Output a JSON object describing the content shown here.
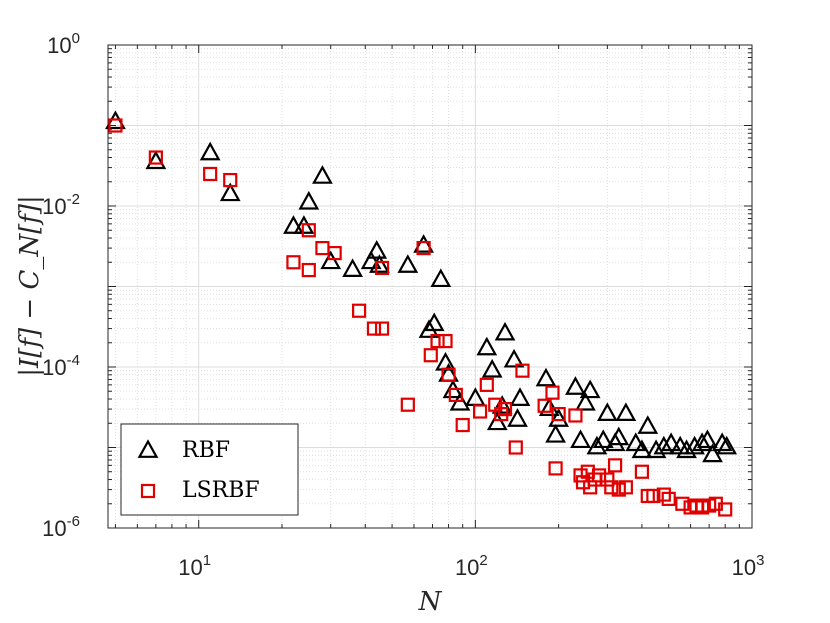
{
  "chart_data": {
    "type": "scatter",
    "xscale": "log",
    "yscale": "log",
    "xlim": [
      4.7,
      1000
    ],
    "ylim": [
      1e-06,
      1
    ],
    "x_ticks": [
      {
        "base": "10",
        "exp": "1"
      },
      {
        "base": "10",
        "exp": "2"
      },
      {
        "base": "10",
        "exp": "3"
      }
    ],
    "y_ticks": [
      {
        "base": "10",
        "exp": "-6"
      },
      {
        "base": "10",
        "exp": "-4"
      },
      {
        "base": "10",
        "exp": "-2"
      },
      {
        "base": "10",
        "exp": "0"
      }
    ],
    "xlabel": "N",
    "ylabel": "|I[f] − C_N[f]|",
    "grid": true,
    "minor_grid": true,
    "legend_position": "bottom-left",
    "series": [
      {
        "name": "RBF",
        "marker": "triangle",
        "color": "#000000",
        "points": [
          [
            5,
            0.11
          ],
          [
            7,
            0.035
          ],
          [
            11,
            0.045
          ],
          [
            13,
            0.014
          ],
          [
            22,
            0.0055
          ],
          [
            24,
            0.0055
          ],
          [
            25,
            0.011
          ],
          [
            28,
            0.023
          ],
          [
            30,
            0.002
          ],
          [
            36,
            0.0016
          ],
          [
            42,
            0.002
          ],
          [
            44,
            0.0027
          ],
          [
            45,
            0.0018
          ],
          [
            57,
            0.0018
          ],
          [
            65,
            0.0032
          ],
          [
            75,
            0.0012
          ],
          [
            68,
            0.00028
          ],
          [
            71,
            0.00034
          ],
          [
            78,
            0.00011
          ],
          [
            80,
            8e-05
          ],
          [
            83,
            5e-05
          ],
          [
            88,
            3.5e-05
          ],
          [
            100,
            4e-05
          ],
          [
            110,
            0.00017
          ],
          [
            115,
            9e-05
          ],
          [
            120,
            2e-05
          ],
          [
            125,
            3.2e-05
          ],
          [
            128,
            0.00026
          ],
          [
            138,
            0.00012
          ],
          [
            142,
            2.2e-05
          ],
          [
            145,
            4e-05
          ],
          [
            180,
            7e-05
          ],
          [
            185,
            3e-05
          ],
          [
            195,
            1.4e-05
          ],
          [
            200,
            2.2e-05
          ],
          [
            230,
            5.5e-05
          ],
          [
            240,
            1.2e-05
          ],
          [
            250,
            3.5e-05
          ],
          [
            260,
            5e-05
          ],
          [
            275,
            1e-05
          ],
          [
            290,
            1.2e-05
          ],
          [
            300,
            2.6e-05
          ],
          [
            320,
            1.1e-05
          ],
          [
            330,
            1.3e-05
          ],
          [
            350,
            2.6e-05
          ],
          [
            380,
            1.1e-05
          ],
          [
            400,
            9e-06
          ],
          [
            420,
            1.8e-05
          ],
          [
            450,
            9e-06
          ],
          [
            480,
            1e-05
          ],
          [
            510,
            1.1e-05
          ],
          [
            550,
            1e-05
          ],
          [
            580,
            9e-06
          ],
          [
            620,
            1e-05
          ],
          [
            660,
            1.1e-05
          ],
          [
            690,
            1.2e-05
          ],
          [
            720,
            8e-06
          ],
          [
            780,
            1.1e-05
          ],
          [
            810,
            1e-05
          ]
        ]
      },
      {
        "name": "LSRBF",
        "marker": "square",
        "color": "#e00000",
        "points": [
          [
            5,
            0.1
          ],
          [
            7,
            0.04
          ],
          [
            11,
            0.025
          ],
          [
            13,
            0.021
          ],
          [
            22,
            0.002
          ],
          [
            25,
            0.0016
          ],
          [
            25,
            0.005
          ],
          [
            28,
            0.003
          ],
          [
            31,
            0.0026
          ],
          [
            38,
            0.0005
          ],
          [
            43,
            0.0003
          ],
          [
            46,
            0.0003
          ],
          [
            46,
            0.0017
          ],
          [
            57,
            3.4e-05
          ],
          [
            65,
            0.003
          ],
          [
            69,
            0.00014
          ],
          [
            73,
            0.00021
          ],
          [
            78,
            0.00021
          ],
          [
            80,
            8e-05
          ],
          [
            85,
            4.5e-05
          ],
          [
            90,
            1.9e-05
          ],
          [
            104,
            2.8e-05
          ],
          [
            110,
            6e-05
          ],
          [
            118,
            3.4e-05
          ],
          [
            124,
            2.6e-05
          ],
          [
            128,
            3e-05
          ],
          [
            140,
            1e-05
          ],
          [
            148,
            9e-05
          ],
          [
            178,
            3.3e-05
          ],
          [
            190,
            4.8e-05
          ],
          [
            200,
            2.6e-05
          ],
          [
            195,
            5.5e-06
          ],
          [
            230,
            2.5e-05
          ],
          [
            240,
            4.5e-06
          ],
          [
            245,
            3.7e-06
          ],
          [
            255,
            5e-06
          ],
          [
            260,
            3.2e-06
          ],
          [
            270,
            4e-06
          ],
          [
            280,
            4.5e-06
          ],
          [
            300,
            4e-06
          ],
          [
            310,
            3.2e-06
          ],
          [
            320,
            6e-06
          ],
          [
            330,
            3e-06
          ],
          [
            350,
            3.2e-06
          ],
          [
            400,
            5e-06
          ],
          [
            420,
            2.5e-06
          ],
          [
            440,
            2.5e-06
          ],
          [
            480,
            2.6e-06
          ],
          [
            500,
            2.3e-06
          ],
          [
            560,
            2e-06
          ],
          [
            600,
            1.8e-06
          ],
          [
            630,
            1.9e-06
          ],
          [
            660,
            1.8e-06
          ],
          [
            700,
            1.9e-06
          ],
          [
            740,
            2e-06
          ],
          [
            800,
            1.7e-06
          ]
        ]
      }
    ]
  }
}
